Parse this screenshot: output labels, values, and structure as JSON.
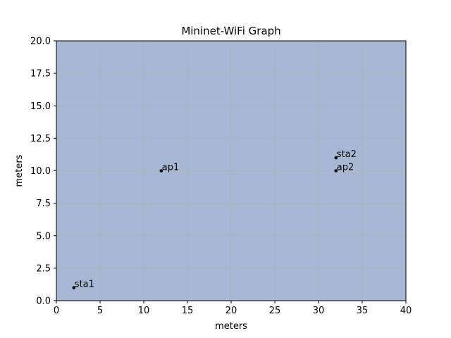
{
  "chart_data": {
    "type": "scatter",
    "title": "Mininet-WiFi Graph",
    "xlabel": "meters",
    "ylabel": "meters",
    "xlim": [
      0,
      40
    ],
    "ylim": [
      0,
      20
    ],
    "xticks": [
      "0",
      "5",
      "10",
      "15",
      "20",
      "25",
      "30",
      "35",
      "40"
    ],
    "yticks": [
      "0.0",
      "2.5",
      "5.0",
      "7.5",
      "10.0",
      "12.5",
      "15.0",
      "17.5",
      "20.0"
    ],
    "grid": true,
    "points": [
      {
        "label": "sta1",
        "x": 2,
        "y": 1
      },
      {
        "label": "ap1",
        "x": 12,
        "y": 10
      },
      {
        "label": "sta2",
        "x": 32,
        "y": 11
      },
      {
        "label": "ap2",
        "x": 32,
        "y": 10
      }
    ],
    "colors": {
      "plot_background": "#a6b8d6",
      "grid": "#b0b0b0",
      "point": "#000000",
      "axis": "#000000"
    }
  }
}
